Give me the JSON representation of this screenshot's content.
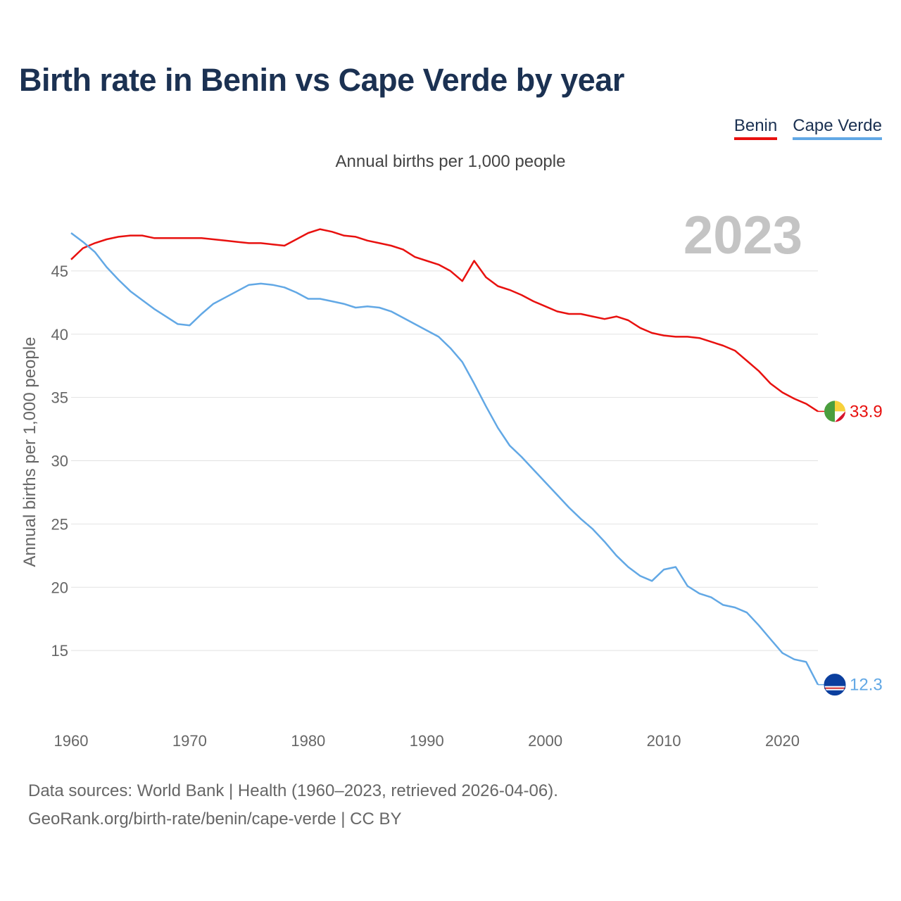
{
  "title": "Birth rate in Benin vs Cape Verde by year",
  "subtitle": "Annual births per 1,000 people",
  "legend": [
    {
      "name": "Benin",
      "color": "#e8110f"
    },
    {
      "name": "Cape Verde",
      "color": "#62a8e5"
    }
  ],
  "footer": {
    "line1": "Data sources: World Bank | Health (1960–2023, retrieved 2026-04-06).",
    "line2": "GeoRank.org/birth-rate/benin/cape-verde | CC BY"
  },
  "chart_data": {
    "type": "line",
    "title": "Birth rate in Benin vs Cape Verde by year",
    "ylabel": "Annual births per 1,000 people",
    "xlabel": "",
    "year_label": "2023",
    "xlim": [
      1960,
      2023
    ],
    "ylim": [
      10,
      48.5
    ],
    "x_ticks": [
      1960,
      1970,
      1980,
      1990,
      2000,
      2010,
      2020
    ],
    "y_ticks": [
      15,
      20,
      25,
      30,
      35,
      40,
      45
    ],
    "grid": true,
    "x": [
      1960,
      1961,
      1962,
      1963,
      1964,
      1965,
      1966,
      1967,
      1968,
      1969,
      1970,
      1971,
      1972,
      1973,
      1974,
      1975,
      1976,
      1977,
      1978,
      1979,
      1980,
      1981,
      1982,
      1983,
      1984,
      1985,
      1986,
      1987,
      1988,
      1989,
      1990,
      1991,
      1992,
      1993,
      1994,
      1995,
      1996,
      1997,
      1998,
      1999,
      2000,
      2001,
      2002,
      2003,
      2004,
      2005,
      2006,
      2007,
      2008,
      2009,
      2010,
      2011,
      2012,
      2013,
      2014,
      2015,
      2016,
      2017,
      2018,
      2019,
      2020,
      2021,
      2022,
      2023
    ],
    "series": [
      {
        "name": "Benin",
        "color": "#e8110f",
        "end_label": "33.9",
        "values": [
          45.9,
          46.8,
          47.2,
          47.5,
          47.7,
          47.8,
          47.8,
          47.6,
          47.6,
          47.6,
          47.6,
          47.6,
          47.5,
          47.4,
          47.3,
          47.2,
          47.2,
          47.1,
          47.0,
          47.5,
          48.0,
          48.3,
          48.1,
          47.8,
          47.7,
          47.4,
          47.2,
          47.0,
          46.7,
          46.1,
          45.8,
          45.5,
          45.0,
          44.2,
          45.8,
          44.5,
          43.8,
          43.5,
          43.1,
          42.6,
          42.2,
          41.8,
          41.6,
          41.6,
          41.4,
          41.2,
          41.4,
          41.1,
          40.5,
          40.1,
          39.9,
          39.8,
          39.8,
          39.7,
          39.4,
          39.1,
          38.7,
          37.9,
          37.1,
          36.1,
          35.4,
          34.9,
          34.5,
          33.9
        ]
      },
      {
        "name": "Cape Verde",
        "color": "#62a8e5",
        "end_label": "12.3",
        "values": [
          48.0,
          47.3,
          46.5,
          45.3,
          44.3,
          43.4,
          42.7,
          42.0,
          41.4,
          40.8,
          40.7,
          41.6,
          42.4,
          42.9,
          43.4,
          43.9,
          44.0,
          43.9,
          43.7,
          43.3,
          42.8,
          42.8,
          42.6,
          42.4,
          42.1,
          42.2,
          42.1,
          41.8,
          41.3,
          40.8,
          40.3,
          39.8,
          38.9,
          37.8,
          36.1,
          34.3,
          32.6,
          31.2,
          30.3,
          29.3,
          28.3,
          27.3,
          26.3,
          25.4,
          24.6,
          23.6,
          22.5,
          21.6,
          20.9,
          20.5,
          21.4,
          21.6,
          20.1,
          19.5,
          19.2,
          18.6,
          18.4,
          18.0,
          17.0,
          15.9,
          14.8,
          14.3,
          14.1,
          12.3
        ]
      }
    ]
  }
}
